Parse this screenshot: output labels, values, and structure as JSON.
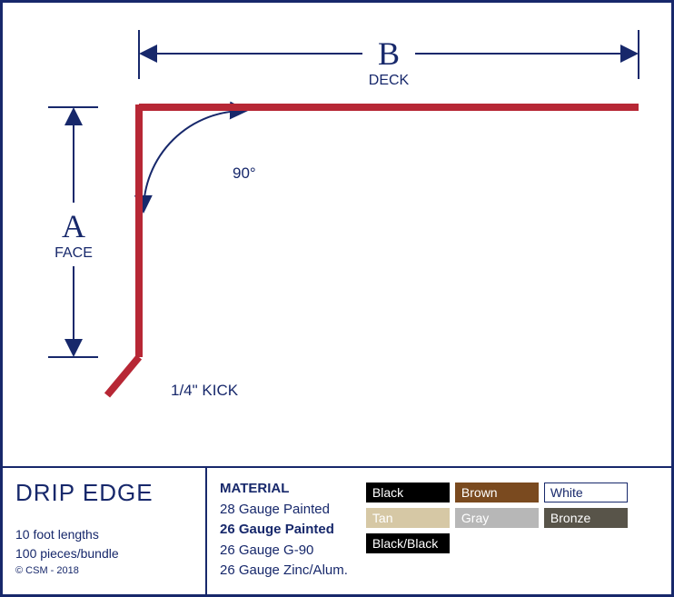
{
  "diagram": {
    "dimensions": {
      "A": {
        "letter": "A",
        "label": "FACE"
      },
      "B": {
        "letter": "B",
        "label": "DECK"
      }
    },
    "angle": "90°",
    "kick": "1/4\" KICK",
    "profile_color": "#b72735",
    "profile_width": 8,
    "dim_color": "#17286b",
    "dim_stroke": 2
  },
  "product": {
    "title": "DRIP EDGE",
    "length": "10 foot lengths",
    "bundle": "100 pieces/bundle",
    "copyright": "© CSM - 2018"
  },
  "material": {
    "heading": "MATERIAL",
    "items": [
      {
        "text": "28 Gauge Painted",
        "bold": false
      },
      {
        "text": "26 Gauge Painted",
        "bold": true
      },
      {
        "text": "26 Gauge G-90",
        "bold": false
      },
      {
        "text": "26 Gauge Zinc/Alum.",
        "bold": false
      }
    ]
  },
  "swatches": {
    "rows": [
      [
        {
          "label": "Black",
          "bg": "#000000",
          "fg": "#ffffff",
          "border": "#000000"
        },
        {
          "label": "Brown",
          "bg": "#7a4a1f",
          "fg": "#ffffff",
          "border": "#7a4a1f"
        },
        {
          "label": "White",
          "bg": "#ffffff",
          "fg": "#17286b",
          "border": "#17286b"
        }
      ],
      [
        {
          "label": "Tan",
          "bg": "#d6c8a5",
          "fg": "#ffffff",
          "border": "#d6c8a5"
        },
        {
          "label": "Gray",
          "bg": "#b7b7b7",
          "fg": "#ffffff",
          "border": "#b7b7b7"
        },
        {
          "label": "Bronze",
          "bg": "#585449",
          "fg": "#ffffff",
          "border": "#585449"
        }
      ],
      [
        {
          "label": "Black/Black",
          "bg": "#000000",
          "fg": "#ffffff",
          "border": "#000000"
        }
      ]
    ]
  }
}
